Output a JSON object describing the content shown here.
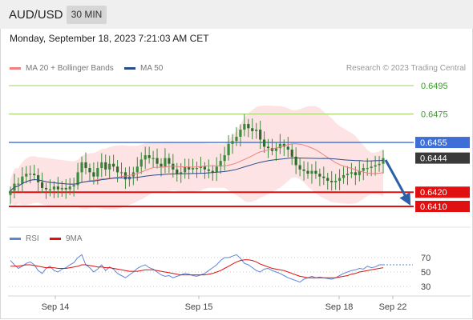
{
  "header": {
    "symbol": "AUD/USD",
    "timeframe": "30 MIN",
    "datetime": "Monday, September 18, 2023 7:21:03 AM CET"
  },
  "legend": {
    "ma20_label": "MA 20 + Bollinger Bands",
    "ma50_label": "MA 50",
    "copyright": "Research © 2023 Trading Central",
    "rsi_label": "RSI",
    "rsi_ma_label": "9MA"
  },
  "colors": {
    "ma20": "#f08080",
    "ma50": "#2b4a8a",
    "bollinger_fill": "#fde0e0",
    "candle": "#3d8c3d",
    "resistance_green": "#a3cf6b",
    "pivot_blue": "#3f6fd6",
    "support_red": "#e01010",
    "current_price": "#3a3a3a",
    "rsi": "#5b86d6",
    "rsi_ma": "#e01010"
  },
  "chart_data": [
    {
      "type": "candlestick",
      "title": "AUD/USD 30 MIN",
      "xlabel": "",
      "ylabel": "",
      "x_tick_labels": [
        "Sep 14",
        "Sep 15",
        "Sep 18",
        "Sep 22"
      ],
      "ylim": [
        0.6405,
        0.65
      ],
      "grid": false,
      "legend_position": "top-left",
      "price_series": [
        0.6421,
        0.6426,
        0.6426,
        0.6431,
        0.6433,
        0.6433,
        0.6432,
        0.6427,
        0.6423,
        0.6422,
        0.6422,
        0.6424,
        0.6422,
        0.6423,
        0.6422,
        0.6424,
        0.6425,
        0.6434,
        0.6441,
        0.6437,
        0.6434,
        0.6431,
        0.6437,
        0.6441,
        0.6436,
        0.644,
        0.6438,
        0.6434,
        0.6434,
        0.6429,
        0.6431,
        0.6434,
        0.6438,
        0.6443,
        0.6446,
        0.6444,
        0.6444,
        0.644,
        0.6438,
        0.6444,
        0.644,
        0.6436,
        0.6433,
        0.6434,
        0.6438,
        0.6436,
        0.6437,
        0.6437,
        0.6438,
        0.6436,
        0.6435,
        0.6434,
        0.6438,
        0.6442,
        0.6446,
        0.6454,
        0.6456,
        0.6459,
        0.6464,
        0.6468,
        0.6465,
        0.6463,
        0.6464,
        0.6457,
        0.6452,
        0.6451,
        0.6449,
        0.6451,
        0.6454,
        0.6452,
        0.645,
        0.6445,
        0.6439,
        0.6436,
        0.6435,
        0.6433,
        0.6435,
        0.6433,
        0.6431,
        0.643,
        0.6428,
        0.6427,
        0.6428,
        0.643,
        0.6432,
        0.6433,
        0.6434,
        0.6432,
        0.6435,
        0.6437,
        0.6437,
        0.6438,
        0.6439,
        0.644,
        0.6444
      ],
      "horizontal_levels": [
        {
          "label": "0.6495",
          "value": 0.6495,
          "kind": "resistance"
        },
        {
          "label": "0.6475",
          "value": 0.6475,
          "kind": "resistance"
        },
        {
          "label": "0.6455",
          "value": 0.6455,
          "kind": "pivot"
        },
        {
          "label": "0.6444",
          "value": 0.6444,
          "kind": "current_price"
        },
        {
          "label": "0.6420",
          "value": 0.642,
          "kind": "support"
        },
        {
          "label": "0.6410",
          "value": 0.641,
          "kind": "support"
        }
      ],
      "series": [
        {
          "name": "MA 20 + Bollinger Bands"
        },
        {
          "name": "MA 50"
        }
      ],
      "forecast_arrow": "down"
    },
    {
      "type": "line",
      "title": "",
      "xlabel": "",
      "ylabel": "",
      "y_tick_labels": [
        "70",
        "50",
        "30"
      ],
      "ylim": [
        20,
        80
      ],
      "grid": true,
      "legend_position": "top-left",
      "series": [
        {
          "name": "RSI",
          "values": [
            66,
            60,
            55,
            58,
            62,
            64,
            60,
            52,
            48,
            55,
            58,
            52,
            50,
            54,
            56,
            60,
            63,
            70,
            74,
            60,
            56,
            50,
            54,
            60,
            52,
            57,
            54,
            48,
            45,
            42,
            46,
            50,
            55,
            58,
            60,
            56,
            54,
            50,
            46,
            44,
            45,
            42,
            44,
            46,
            48,
            47,
            45,
            44,
            46,
            48,
            52,
            56,
            60,
            66,
            70,
            70,
            72,
            74,
            69,
            62,
            60,
            56,
            52,
            50,
            54,
            55,
            52,
            50,
            48,
            45,
            42,
            40,
            38,
            36,
            40,
            42,
            44,
            42,
            43,
            42,
            41,
            40,
            42,
            45,
            48,
            50,
            52,
            53,
            55,
            54,
            58,
            56,
            57,
            60,
            60
          ]
        },
        {
          "name": "9MA",
          "values": [
            58,
            58,
            58,
            59,
            60,
            60,
            59,
            58,
            57,
            56,
            56,
            56,
            55,
            55,
            55,
            56,
            57,
            58,
            60,
            60,
            59,
            58,
            57,
            57,
            56,
            56,
            55,
            54,
            53,
            52,
            51,
            51,
            51,
            52,
            53,
            53,
            53,
            52,
            51,
            50,
            49,
            48,
            47,
            46,
            46,
            46,
            46,
            46,
            46,
            46,
            47,
            48,
            50,
            52,
            55,
            58,
            61,
            64,
            66,
            67,
            67,
            66,
            64,
            61,
            59,
            57,
            55,
            54,
            53,
            52,
            50,
            48,
            46,
            44,
            43,
            42,
            42,
            42,
            42,
            42,
            42,
            42,
            42,
            43,
            44,
            45,
            47,
            48,
            50,
            51,
            52,
            53,
            54,
            55,
            56
          ]
        }
      ]
    }
  ]
}
